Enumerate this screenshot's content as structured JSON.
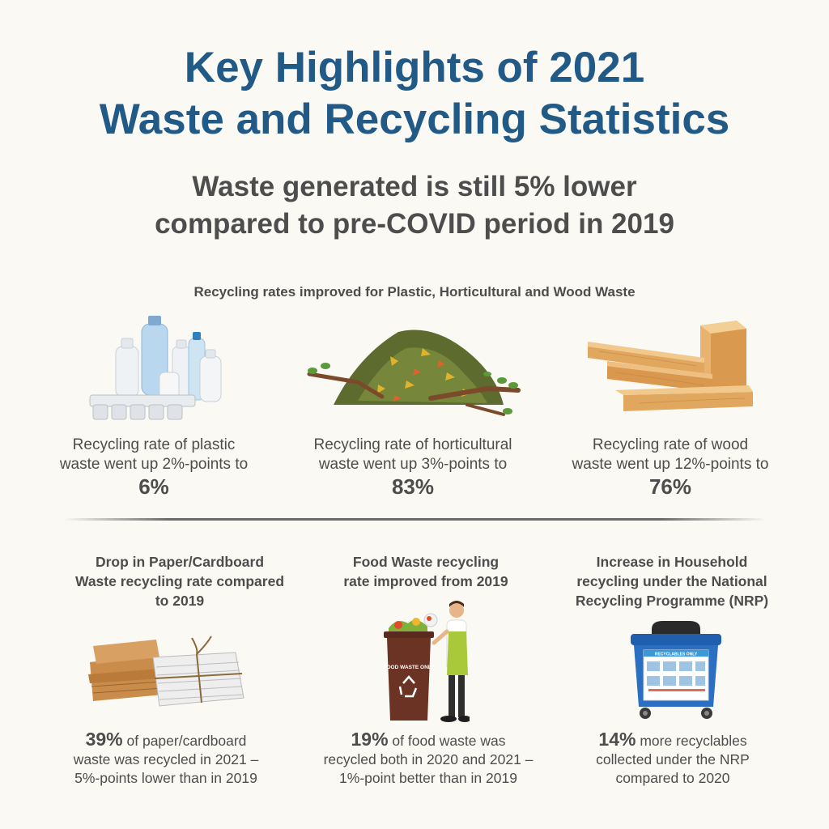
{
  "title": {
    "line1": "Key Highlights of 2021",
    "line2": "Waste and Recycling Statistics"
  },
  "subtitle": {
    "line1": "Waste generated is still 5% lower",
    "line2": "compared to pre-COVID period in 2019"
  },
  "recycling_rates": {
    "heading": "Recycling rates improved for Plastic, Horticultural and Wood Waste",
    "items": [
      {
        "icon": "plastic-bottles-icon",
        "line1": "Recycling rate of plastic",
        "line2": "waste went up 2%-points to",
        "value": "6%"
      },
      {
        "icon": "horticultural-waste-icon",
        "line1": "Recycling rate of horticultural",
        "line2": "waste went up 3%-points to",
        "value": "83%"
      },
      {
        "icon": "wood-planks-icon",
        "line1": "Recycling rate of wood",
        "line2": "waste went up 12%-points to",
        "value": "76%"
      }
    ]
  },
  "highlights": [
    {
      "icon": "paper-cardboard-bundle-icon",
      "heading_line1": "Drop in Paper/Cardboard",
      "heading_line2": "Waste recycling rate compared",
      "heading_line3": "to 2019",
      "value": "39%",
      "text_line1": " of paper/cardboard",
      "text_line2": "waste was recycled in 2021 –",
      "text_line3": "5%-points lower than in 2019"
    },
    {
      "icon": "food-waste-bin-icon",
      "heading_line1": "Food Waste recycling",
      "heading_line2": "rate improved from 2019",
      "bin_label": "FOOD WASTE ONLY",
      "value": "19%",
      "text_line1": " of food waste was",
      "text_line2": "recycled both in 2020 and 2021 –",
      "text_line3": "1%-point better than in 2019"
    },
    {
      "icon": "recycling-bin-icon",
      "heading_line1": "Increase in Household",
      "heading_line2": "recycling under the National",
      "heading_line3": "Recycling Programme (NRP)",
      "bin_label": "RECYCLABLES ONLY",
      "value": "14%",
      "text_line1": " more recyclables",
      "text_line2": "collected under the NRP",
      "text_line3": "compared to 2020"
    }
  ]
}
